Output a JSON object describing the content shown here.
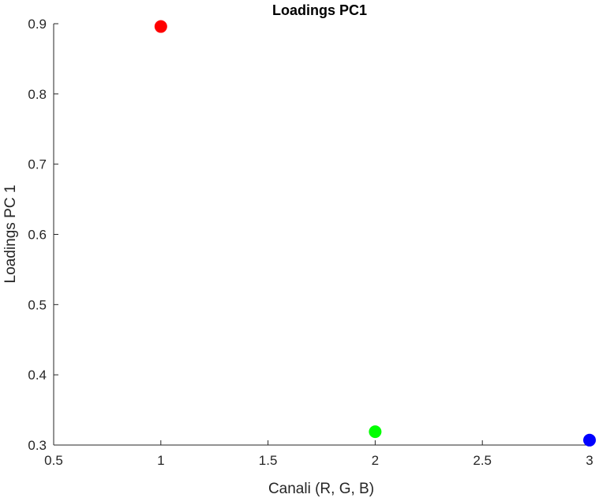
{
  "chart_data": {
    "type": "scatter",
    "title": "Loadings PC1",
    "xlabel": "Canali (R, G, B)",
    "ylabel": "Loadings PC 1",
    "xlim": [
      0.5,
      3
    ],
    "ylim": [
      0.3,
      0.9
    ],
    "xticks": [
      "0.5",
      "1",
      "1.5",
      "2",
      "2.5",
      "3"
    ],
    "yticks": [
      "0.3",
      "0.4",
      "0.5",
      "0.6",
      "0.7",
      "0.8",
      "0.9"
    ],
    "grid": false,
    "points": [
      {
        "x": 1,
        "y": 0.896,
        "color": "#ff0000"
      },
      {
        "x": 2,
        "y": 0.319,
        "color": "#00ff00"
      },
      {
        "x": 3,
        "y": 0.307,
        "color": "#0000ff"
      }
    ]
  }
}
